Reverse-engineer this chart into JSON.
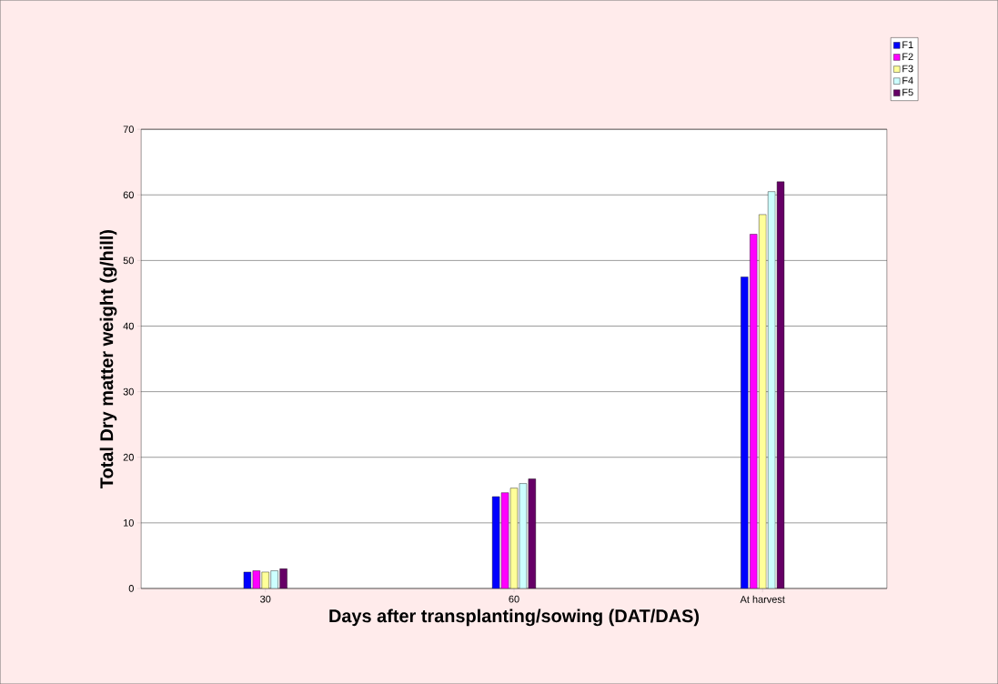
{
  "chart_data": {
    "type": "bar",
    "xlabel": "Days after transplanting/sowing (DAT/DAS)",
    "ylabel": "Total Dry matter weight (g/hill)",
    "categories": [
      "30",
      "60",
      "At harvest"
    ],
    "series": [
      {
        "name": "F1",
        "color": "#0000ff",
        "values": [
          2.5,
          14,
          47.5
        ]
      },
      {
        "name": "F2",
        "color": "#ff00ff",
        "values": [
          2.7,
          14.6,
          54
        ]
      },
      {
        "name": "F3",
        "color": "#ffff99",
        "values": [
          2.5,
          15.3,
          57
        ]
      },
      {
        "name": "F4",
        "color": "#ccffff",
        "values": [
          2.7,
          16,
          60.5
        ]
      },
      {
        "name": "F5",
        "color": "#660066",
        "values": [
          3,
          16.7,
          62
        ]
      }
    ],
    "ylim": [
      0,
      70
    ],
    "yticks": [
      0,
      10,
      20,
      30,
      40,
      50,
      60,
      70
    ],
    "grid": "y",
    "legend": "top right"
  }
}
